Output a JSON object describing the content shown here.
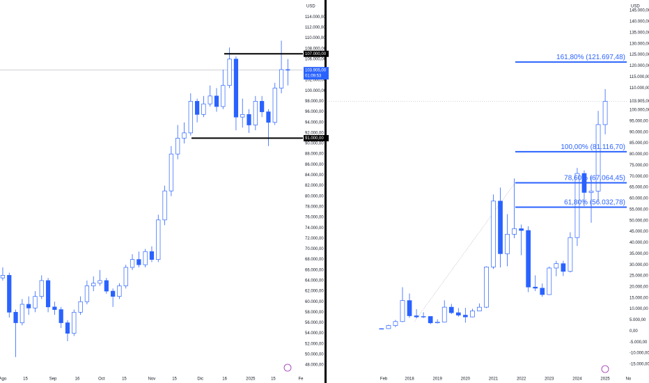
{
  "chart_data": [
    {
      "type": "candlestick",
      "currency": "USD",
      "grid": false,
      "up_color": "#ffffff",
      "down_color": "#2962ff",
      "line_color": "#2962ff",
      "xlim": [
        -1.7,
        185.3
      ],
      "ylim": [
        45900,
        117200
      ],
      "xticks": [
        {
          "value": 0,
          "label": "Ago"
        },
        {
          "value": 14,
          "label": "15"
        },
        {
          "value": 31,
          "label": "Sep"
        },
        {
          "value": 46,
          "label": "16"
        },
        {
          "value": 61,
          "label": "Oct"
        },
        {
          "value": 75,
          "label": "15"
        },
        {
          "value": 92,
          "label": "Nov"
        },
        {
          "value": 106,
          "label": "15"
        },
        {
          "value": 122,
          "label": "Dic"
        },
        {
          "value": 137,
          "label": "16"
        },
        {
          "value": 153,
          "label": "2025"
        },
        {
          "value": 167,
          "label": "15"
        },
        {
          "value": 184,
          "label": "Fe"
        }
      ],
      "yticks": [
        {
          "value": 48000,
          "label": "48.000,00"
        },
        {
          "value": 50000,
          "label": "50.000,00"
        },
        {
          "value": 52000,
          "label": "52.000,00"
        },
        {
          "value": 54000,
          "label": "54.000,00"
        },
        {
          "value": 56000,
          "label": "56.000,00"
        },
        {
          "value": 58000,
          "label": "58.000,00"
        },
        {
          "value": 60000,
          "label": "60.000,00"
        },
        {
          "value": 62000,
          "label": "62.000,00"
        },
        {
          "value": 64000,
          "label": "64.000,00"
        },
        {
          "value": 66000,
          "label": "66.000,00"
        },
        {
          "value": 68000,
          "label": "68.000,00"
        },
        {
          "value": 70000,
          "label": "70.000,00"
        },
        {
          "value": 72000,
          "label": "72.000,00"
        },
        {
          "value": 74000,
          "label": "74.000,00"
        },
        {
          "value": 76000,
          "label": "76.000,00"
        },
        {
          "value": 78000,
          "label": "78.000,00"
        },
        {
          "value": 80000,
          "label": "80.000,00"
        },
        {
          "value": 82000,
          "label": "82.000,00"
        },
        {
          "value": 84000,
          "label": "84.000,00"
        },
        {
          "value": 86000,
          "label": "86.000,00"
        },
        {
          "value": 88000,
          "label": "88.000,00"
        },
        {
          "value": 90000,
          "label": "90.000,00"
        },
        {
          "value": 92000,
          "label": "92.000,00"
        },
        {
          "value": 94000,
          "label": "94.000,00"
        },
        {
          "value": 96000,
          "label": "96.000,00"
        },
        {
          "value": 98000,
          "label": "98.000,00"
        },
        {
          "value": 100000,
          "label": "100.000,00"
        },
        {
          "value": 102000,
          "label": "102.000,00"
        },
        {
          "value": 104000,
          "label": "104.000,00"
        },
        {
          "value": 106000,
          "label": "106.000,00"
        },
        {
          "value": 108000,
          "label": "108.000,00"
        },
        {
          "value": 110000,
          "label": "110.000,00"
        },
        {
          "value": 112000,
          "label": "112.000,00"
        },
        {
          "value": 114000,
          "label": "114.000,00"
        }
      ],
      "x": [
        0,
        4,
        8,
        12,
        16,
        20,
        24,
        28,
        32,
        36,
        40,
        44,
        48,
        52,
        56,
        60,
        64,
        68,
        72,
        76,
        80,
        84,
        88,
        92,
        96,
        100,
        104,
        108,
        112,
        116,
        120,
        124,
        128,
        132,
        136,
        140,
        144,
        148,
        152,
        156,
        160,
        164,
        168,
        172,
        176
      ],
      "open": [
        64500,
        65000,
        58000,
        56000,
        59500,
        58800,
        61000,
        64000,
        59000,
        58500,
        56000,
        54000,
        58000,
        60000,
        63000,
        63500,
        64000,
        62000,
        61000,
        63000,
        66500,
        68000,
        67000,
        69500,
        68000,
        75500,
        81000,
        88000,
        91000,
        92000,
        98000,
        95500,
        97500,
        99000,
        97000,
        101000,
        106000,
        95000,
        95500,
        93500,
        98000,
        96000,
        94000,
        100500,
        104000
      ],
      "high": [
        66500,
        65500,
        58500,
        60500,
        61000,
        62000,
        65000,
        64500,
        60000,
        59000,
        56500,
        58500,
        61000,
        64000,
        64800,
        66000,
        64500,
        62500,
        63500,
        67000,
        69000,
        69500,
        70000,
        70500,
        76500,
        82000,
        89500,
        93500,
        94000,
        99500,
        98500,
        99000,
        101000,
        100500,
        104000,
        108200,
        106500,
        98500,
        96500,
        99000,
        99000,
        96500,
        101500,
        109500,
        106000
      ],
      "low": [
        64000,
        57000,
        49500,
        55500,
        57500,
        58000,
        60500,
        58000,
        57500,
        55000,
        52500,
        53500,
        57500,
        59500,
        62000,
        63000,
        61500,
        59000,
        60500,
        62500,
        66000,
        66500,
        66500,
        67500,
        67500,
        74500,
        80000,
        87000,
        90000,
        91500,
        94000,
        95000,
        97000,
        96000,
        96500,
        100500,
        92500,
        93000,
        92000,
        92500,
        95000,
        89500,
        93500,
        99500,
        101000
      ],
      "close": [
        65000,
        58000,
        56000,
        59500,
        58800,
        61000,
        64000,
        59000,
        58500,
        56000,
        54000,
        58000,
        60000,
        63000,
        63500,
        64000,
        62000,
        61000,
        63000,
        66500,
        68000,
        67000,
        69500,
        68000,
        75500,
        81000,
        88000,
        91000,
        92000,
        98000,
        95500,
        97500,
        99000,
        97000,
        101000,
        106000,
        95000,
        95500,
        93500,
        98000,
        96000,
        94000,
        100500,
        104000,
        103905
      ],
      "levels": [
        {
          "value": 107000,
          "label": "107.000,00"
        },
        {
          "value": 91000,
          "label": "91.000,00"
        }
      ],
      "last_price": {
        "value": 103905,
        "label": "103.905,00"
      },
      "countdown": "01:09:53"
    },
    {
      "type": "candlestick",
      "currency": "USD",
      "grid": false,
      "up_color": "#ffffff",
      "down_color": "#2962ff",
      "line_color": "#2962ff",
      "xlim": [
        2015.06,
        2025.77
      ],
      "ylim": [
        -20350,
        149770
      ],
      "xticks": [
        {
          "value": 2017.08,
          "label": "Feb"
        },
        2018,
        2019,
        2020,
        2021,
        2022,
        2023,
        2024,
        2025,
        {
          "value": 2025.83,
          "label": "No"
        }
      ],
      "yticks": [
        {
          "value": -15000,
          "label": "-15.000,00"
        },
        {
          "value": -10000,
          "label": "-10.000,00"
        },
        {
          "value": -5000,
          "label": "-5.000,00"
        },
        {
          "value": 0,
          "label": "0,00"
        },
        {
          "value": 5000,
          "label": "5.000,00"
        },
        {
          "value": 10000,
          "label": "10.000,00"
        },
        {
          "value": 15000,
          "label": "15.000,00"
        },
        {
          "value": 20000,
          "label": "20.000,00"
        },
        {
          "value": 25000,
          "label": "25.000,00"
        },
        {
          "value": 30000,
          "label": "30.000,00"
        },
        {
          "value": 35000,
          "label": "35.000,00"
        },
        {
          "value": 40000,
          "label": "40.000,00"
        },
        {
          "value": 45000,
          "label": "45.000,00"
        },
        {
          "value": 50000,
          "label": "50.000,00"
        },
        {
          "value": 55000,
          "label": "55.000,00"
        },
        {
          "value": 60000,
          "label": "60.000,00"
        },
        {
          "value": 65000,
          "label": "65.000,00"
        },
        {
          "value": 70000,
          "label": "70.000,00"
        },
        {
          "value": 75000,
          "label": "75.000,00"
        },
        {
          "value": 80000,
          "label": "80.000,00"
        },
        {
          "value": 85000,
          "label": "85.000,00"
        },
        {
          "value": 90000,
          "label": "90.000,00"
        },
        {
          "value": 95000,
          "label": "95.000,00"
        },
        {
          "value": 100000,
          "label": "100.000,00"
        },
        {
          "value": 110000,
          "label": "110.000,00"
        },
        {
          "value": 115000,
          "label": "115.000,00"
        },
        {
          "value": 120000,
          "label": "120.000,00"
        },
        {
          "value": 125000,
          "label": "125.000,00"
        },
        {
          "value": 130000,
          "label": "130.000,00"
        },
        {
          "value": 135000,
          "label": "135.000,00"
        },
        {
          "value": 140000,
          "label": "140.000,00"
        },
        {
          "value": 145000,
          "label": "145.000,00"
        }
      ],
      "x": [
        2017,
        2017.25,
        2017.5,
        2017.75,
        2018,
        2018.25,
        2018.5,
        2018.75,
        2019,
        2019.25,
        2019.5,
        2019.75,
        2020,
        2020.25,
        2020.5,
        2020.75,
        2021,
        2021.25,
        2021.5,
        2021.75,
        2022,
        2022.25,
        2022.5,
        2022.75,
        2023,
        2023.25,
        2023.5,
        2023.75,
        2024,
        2024.25,
        2024.5,
        2024.75,
        2025
      ],
      "open": [
        1000,
        1100,
        2500,
        4300,
        13800,
        6900,
        6400,
        6600,
        3700,
        4100,
        10800,
        8300,
        7200,
        6400,
        9100,
        10800,
        29000,
        58800,
        35000,
        43800,
        46300,
        45500,
        19900,
        19400,
        16500,
        28500,
        30500,
        27000,
        42300,
        71300,
        62700,
        63300,
        93400
      ],
      "high": [
        1300,
        2900,
        5000,
        19800,
        17000,
        9900,
        8500,
        6700,
        5300,
        13900,
        12300,
        10400,
        10500,
        10100,
        12500,
        29300,
        61800,
        64900,
        52900,
        69000,
        48200,
        47400,
        25200,
        21500,
        29200,
        31800,
        31800,
        44700,
        73800,
        72700,
        70000,
        99600,
        109500
      ],
      "low": [
        900,
        1000,
        1800,
        4000,
        6000,
        5800,
        5900,
        3100,
        3400,
        4000,
        7700,
        6500,
        3800,
        6200,
        9000,
        10400,
        28100,
        28800,
        29300,
        42000,
        34300,
        17600,
        18100,
        15500,
        16400,
        24800,
        24900,
        26500,
        38500,
        56500,
        49000,
        58900,
        89000
      ],
      "close": [
        1100,
        2500,
        4300,
        13800,
        6900,
        6400,
        6600,
        3700,
        4100,
        10800,
        8300,
        7200,
        6400,
        9100,
        10800,
        29000,
        58800,
        35000,
        43800,
        46300,
        45500,
        19900,
        19400,
        16500,
        28500,
        30500,
        27000,
        42300,
        71300,
        62700,
        63300,
        93400,
        103905
      ],
      "fib_levels": [
        {
          "value": 121697.48,
          "label": "161,80% (121.697,48)"
        },
        {
          "value": 81116.7,
          "label": "100,00% (81.116,70)"
        },
        {
          "value": 67064.45,
          "label": "78,60% (67.064,45)"
        },
        {
          "value": 56032.78,
          "label": "61,80% (56.032,78)"
        }
      ],
      "last_price": {
        "value": 103905,
        "label": "103.905,00"
      }
    }
  ]
}
